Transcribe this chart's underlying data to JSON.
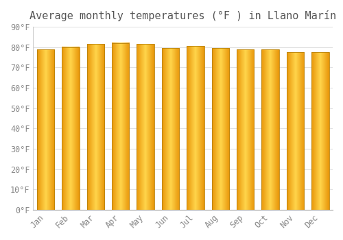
{
  "title": "Average monthly temperatures (°F ) in Llano Marín",
  "months": [
    "Jan",
    "Feb",
    "Mar",
    "Apr",
    "May",
    "Jun",
    "Jul",
    "Aug",
    "Sep",
    "Oct",
    "Nov",
    "Dec"
  ],
  "values": [
    78.8,
    80.0,
    81.5,
    82.0,
    81.5,
    79.5,
    80.5,
    79.5,
    78.8,
    78.8,
    77.5,
    77.5
  ],
  "bar_color_edge": "#E8960A",
  "bar_color_center": "#FFD44A",
  "bar_color_mid": "#FFAA10",
  "background_color": "#FFFFFF",
  "grid_color": "#E0E0E0",
  "ylim": [
    0,
    90
  ],
  "yticks": [
    0,
    10,
    20,
    30,
    40,
    50,
    60,
    70,
    80,
    90
  ],
  "ytick_labels": [
    "0°F",
    "10°F",
    "20°F",
    "30°F",
    "40°F",
    "50°F",
    "60°F",
    "70°F",
    "80°F",
    "90°F"
  ],
  "title_fontsize": 11,
  "tick_fontsize": 8.5,
  "figsize": [
    5.0,
    3.5
  ],
  "dpi": 100,
  "bar_width": 0.7
}
